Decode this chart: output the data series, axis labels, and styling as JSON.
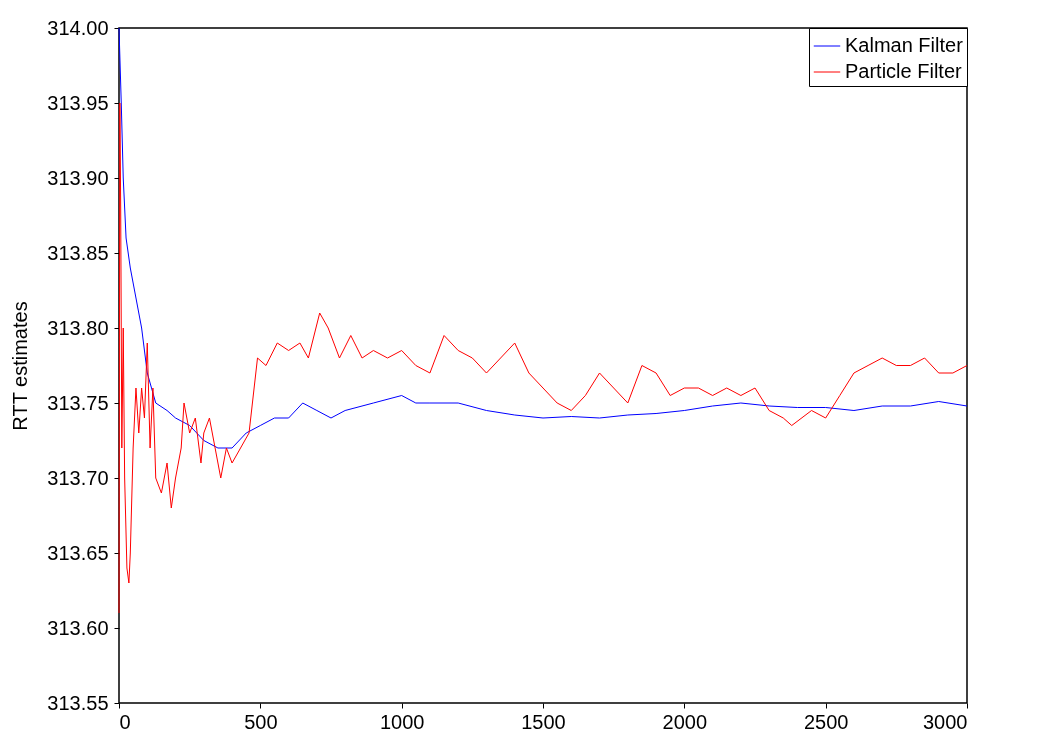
{
  "chart_data": {
    "type": "line",
    "ylabel": "RTT estimates",
    "legend": "top right",
    "grid": false,
    "xlim": [
      0,
      3000
    ],
    "xticks": [
      0,
      500,
      1000,
      1500,
      2000,
      2500,
      3000
    ],
    "ylim": [
      313.55,
      314.0
    ],
    "yticks": [
      {
        "value": 313.55,
        "label": "313.55"
      },
      {
        "value": 313.6,
        "label": "313.60"
      },
      {
        "value": 313.65,
        "label": "313.65"
      },
      {
        "value": 313.7,
        "label": "313.70"
      },
      {
        "value": 313.75,
        "label": "313.75"
      },
      {
        "value": 313.8,
        "label": "313.80"
      },
      {
        "value": 313.85,
        "label": "313.85"
      },
      {
        "value": 313.9,
        "label": "313.90"
      },
      {
        "value": 313.95,
        "label": "313.95"
      },
      {
        "value": 314.0,
        "label": "314.00"
      }
    ],
    "series": [
      {
        "name": "Kalman Filter",
        "color": "#0000ff",
        "x": [
          0,
          8,
          15,
          25,
          40,
          60,
          80,
          100,
          130,
          170,
          200,
          250,
          300,
          350,
          400,
          450,
          500,
          550,
          600,
          650,
          700,
          750,
          800,
          900,
          1000,
          1050,
          1100,
          1200,
          1300,
          1400,
          1500,
          1600,
          1700,
          1800,
          1900,
          2000,
          2100,
          2200,
          2300,
          2400,
          2500,
          2600,
          2700,
          2800,
          2900,
          3000
        ],
        "values": [
          314.0,
          313.95,
          313.9,
          313.86,
          313.84,
          313.82,
          313.8,
          313.77,
          313.75,
          313.745,
          313.74,
          313.735,
          313.725,
          313.72,
          313.72,
          313.73,
          313.735,
          313.74,
          313.74,
          313.75,
          313.745,
          313.74,
          313.745,
          313.75,
          313.755,
          313.75,
          313.75,
          313.75,
          313.745,
          313.742,
          313.74,
          313.741,
          313.74,
          313.742,
          313.743,
          313.745,
          313.748,
          313.75,
          313.748,
          313.747,
          313.747,
          313.745,
          313.748,
          313.748,
          313.751,
          313.748
        ]
      },
      {
        "name": "Particle Filter",
        "color": "#ff0000",
        "x": [
          0,
          3,
          6,
          10,
          15,
          20,
          28,
          35,
          40,
          50,
          60,
          70,
          80,
          90,
          100,
          110,
          120,
          130,
          150,
          170,
          185,
          200,
          220,
          230,
          250,
          270,
          290,
          300,
          320,
          340,
          360,
          380,
          400,
          430,
          460,
          490,
          520,
          560,
          600,
          640,
          670,
          710,
          740,
          780,
          820,
          860,
          900,
          950,
          1000,
          1050,
          1100,
          1150,
          1200,
          1250,
          1300,
          1350,
          1400,
          1450,
          1500,
          1550,
          1600,
          1650,
          1700,
          1750,
          1800,
          1850,
          1900,
          1950,
          2000,
          2050,
          2100,
          2150,
          2200,
          2250,
          2300,
          2350,
          2380,
          2450,
          2500,
          2550,
          2600,
          2650,
          2700,
          2750,
          2800,
          2850,
          2900,
          2950,
          3000
        ],
        "values": [
          313.61,
          313.95,
          313.88,
          313.72,
          313.8,
          313.7,
          313.64,
          313.63,
          313.65,
          313.72,
          313.76,
          313.73,
          313.76,
          313.74,
          313.79,
          313.72,
          313.76,
          313.7,
          313.69,
          313.71,
          313.68,
          313.7,
          313.72,
          313.75,
          313.73,
          313.74,
          313.71,
          313.73,
          313.74,
          313.72,
          313.7,
          313.72,
          313.71,
          313.72,
          313.73,
          313.78,
          313.775,
          313.79,
          313.785,
          313.79,
          313.78,
          313.81,
          313.8,
          313.78,
          313.795,
          313.78,
          313.785,
          313.78,
          313.785,
          313.775,
          313.77,
          313.795,
          313.785,
          313.78,
          313.77,
          313.78,
          313.79,
          313.77,
          313.76,
          313.75,
          313.745,
          313.755,
          313.77,
          313.76,
          313.75,
          313.775,
          313.77,
          313.755,
          313.76,
          313.76,
          313.755,
          313.76,
          313.755,
          313.76,
          313.745,
          313.74,
          313.735,
          313.745,
          313.74,
          313.755,
          313.77,
          313.775,
          313.78,
          313.775,
          313.775,
          313.78,
          313.77,
          313.77,
          313.775
        ]
      }
    ]
  }
}
